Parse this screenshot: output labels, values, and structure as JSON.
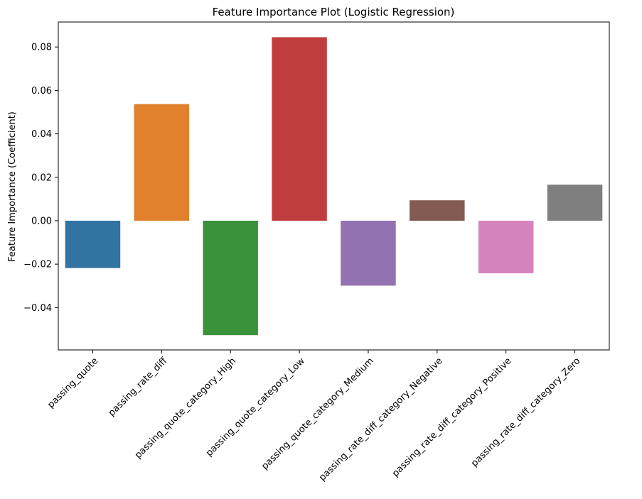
{
  "chart_data": {
    "type": "bar",
    "title": "Feature Importance Plot (Logistic Regression)",
    "xlabel": "",
    "ylabel": "Feature Importance (Coefficient)",
    "ylim": [
      -0.0595,
      0.0915
    ],
    "yticks": [
      -0.04,
      -0.02,
      0.0,
      0.02,
      0.04,
      0.06,
      0.08
    ],
    "ytick_labels": [
      "−0.04",
      "−0.02",
      "0.00",
      "0.02",
      "0.04",
      "0.06",
      "0.08"
    ],
    "grid": false,
    "legend": "none",
    "categories": [
      "passing_quote",
      "passing_rate_diff",
      "passing_quote_category_High",
      "passing_quote_category_Low",
      "passing_quote_category_Medium",
      "passing_rate_diff_category_Negative",
      "passing_rate_diff_category_Positive",
      "passing_rate_diff_category_Zero"
    ],
    "values": [
      -0.0218,
      0.0537,
      -0.0527,
      0.0845,
      -0.0299,
      0.0094,
      -0.0242,
      0.0166
    ],
    "colors": [
      "#3274a1",
      "#e1812c",
      "#3a923a",
      "#c03d3e",
      "#9372b2",
      "#845b53",
      "#d684bd",
      "#7f7f7f"
    ]
  }
}
